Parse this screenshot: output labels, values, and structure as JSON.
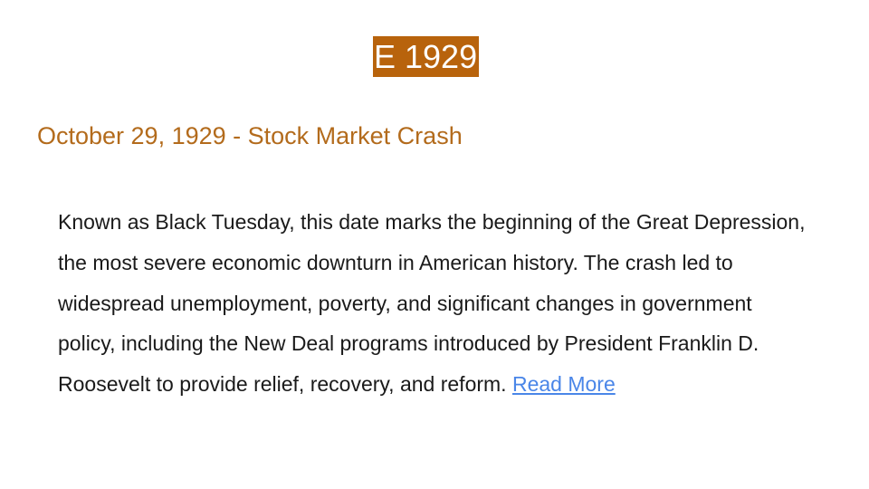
{
  "slide": {
    "title": "E 1929",
    "subtitle": "October 29, 1929 - Stock Market Crash",
    "body": "Known as Black Tuesday, this date marks the beginning of the Great Depression, the most severe economic downturn in American history. The crash led to widespread unemployment, poverty, and significant changes in government policy, including the New Deal programs introduced by President Franklin D. Roosevelt to provide relief, recovery, and reform.",
    "link_label": "Read More"
  },
  "colors": {
    "title_background": "#b8630c",
    "title_text": "#ffffff",
    "subtitle_text": "#b36b1c",
    "body_text": "#1a1a1a",
    "link_text": "#4a86e8"
  }
}
